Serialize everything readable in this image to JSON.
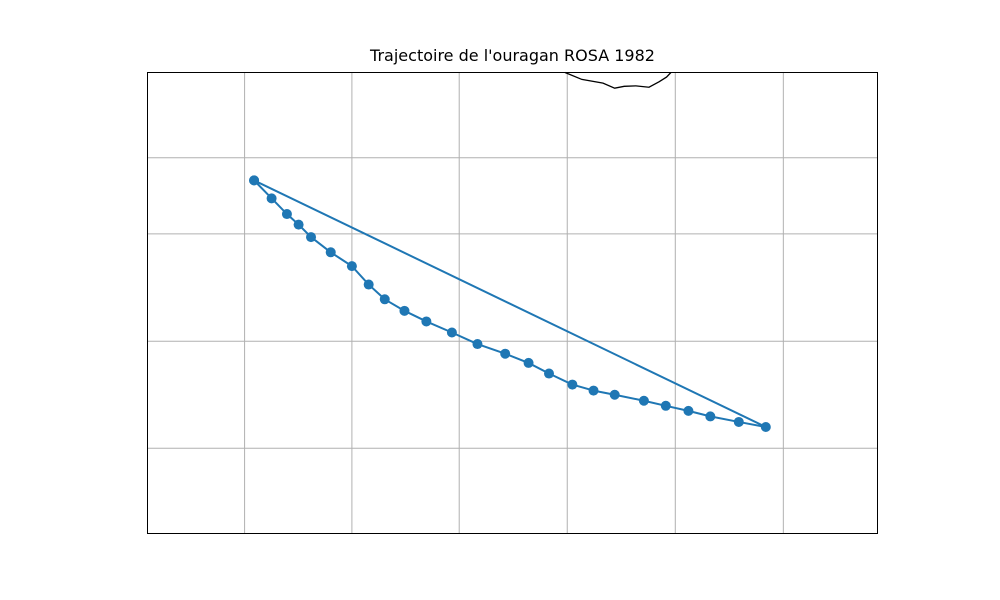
{
  "chart_data": {
    "type": "map",
    "title": "Trajectoire de l'ouragan ROSA 1982",
    "series_color": "#1f77b4",
    "coastline_color": "#000000",
    "grid": true,
    "xlim": [
      0,
      100
    ],
    "ylim": [
      0,
      100
    ],
    "x_gridlines": [
      13.3,
      28,
      42.7,
      57.5,
      72.3,
      87.1
    ],
    "y_gridlines": [
      18.5,
      41.7,
      65,
      81.5
    ],
    "track": [
      {
        "x": 14.6,
        "y": 76.6
      },
      {
        "x": 17.0,
        "y": 72.7
      },
      {
        "x": 19.1,
        "y": 69.3
      },
      {
        "x": 20.7,
        "y": 67.0
      },
      {
        "x": 22.4,
        "y": 64.3
      },
      {
        "x": 25.1,
        "y": 61.0
      },
      {
        "x": 28.0,
        "y": 58.0
      },
      {
        "x": 30.3,
        "y": 54.0
      },
      {
        "x": 32.5,
        "y": 50.8
      },
      {
        "x": 35.2,
        "y": 48.3
      },
      {
        "x": 38.2,
        "y": 46.0
      },
      {
        "x": 41.7,
        "y": 43.6
      },
      {
        "x": 45.2,
        "y": 41.1
      },
      {
        "x": 49.0,
        "y": 39.0
      },
      {
        "x": 52.2,
        "y": 37.0
      },
      {
        "x": 55.0,
        "y": 34.7
      },
      {
        "x": 58.2,
        "y": 32.3
      },
      {
        "x": 61.1,
        "y": 31.0
      },
      {
        "x": 64.0,
        "y": 30.1
      },
      {
        "x": 68.0,
        "y": 28.8
      },
      {
        "x": 71.0,
        "y": 27.7
      },
      {
        "x": 74.1,
        "y": 26.6
      },
      {
        "x": 77.1,
        "y": 25.4
      },
      {
        "x": 81.0,
        "y": 24.2
      },
      {
        "x": 84.7,
        "y": 23.1
      },
      {
        "x": 14.6,
        "y": 76.6
      }
    ],
    "coastline": [
      {
        "x": 57.2,
        "y": 100
      },
      {
        "x": 59.5,
        "y": 98.5
      },
      {
        "x": 62.4,
        "y": 97.7
      },
      {
        "x": 64.0,
        "y": 96.6
      },
      {
        "x": 65.3,
        "y": 97.0
      },
      {
        "x": 66.9,
        "y": 97.1
      },
      {
        "x": 68.7,
        "y": 96.8
      },
      {
        "x": 70.1,
        "y": 98.0
      },
      {
        "x": 71.1,
        "y": 99.0
      },
      {
        "x": 71.7,
        "y": 100
      }
    ]
  }
}
